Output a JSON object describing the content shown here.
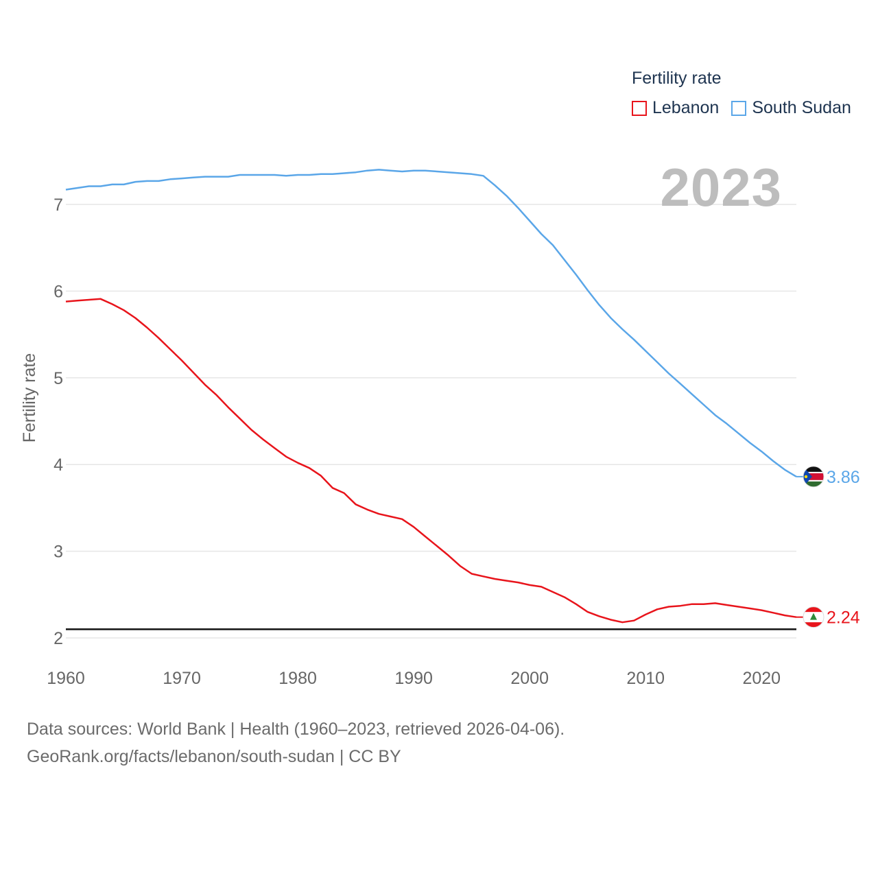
{
  "chart_data": {
    "type": "line",
    "ylabel": "Fertility rate",
    "xlabel": "",
    "xlim": [
      1960,
      2023
    ],
    "ylim": [
      1.9,
      7.55
    ],
    "yticks": [
      2,
      3,
      4,
      5,
      6,
      7
    ],
    "xticks": [
      1960,
      1970,
      1980,
      1990,
      2000,
      2010,
      2020
    ],
    "reference_line": 2.1,
    "current_year": "2023",
    "legend_title": "Fertility rate",
    "series": [
      {
        "name": "Lebanon",
        "color": "#e8141b",
        "end_label": "2.24",
        "flag": "lebanon-flag",
        "x": [
          1960,
          1961,
          1962,
          1963,
          1964,
          1965,
          1966,
          1967,
          1968,
          1969,
          1970,
          1971,
          1972,
          1973,
          1974,
          1975,
          1976,
          1977,
          1978,
          1979,
          1980,
          1981,
          1982,
          1983,
          1984,
          1985,
          1986,
          1987,
          1988,
          1989,
          1990,
          1991,
          1992,
          1993,
          1994,
          1995,
          1996,
          1997,
          1998,
          1999,
          2000,
          2001,
          2002,
          2003,
          2004,
          2005,
          2006,
          2007,
          2008,
          2009,
          2010,
          2011,
          2012,
          2013,
          2014,
          2015,
          2016,
          2017,
          2018,
          2019,
          2020,
          2021,
          2022,
          2023
        ],
        "values": [
          5.88,
          5.89,
          5.9,
          5.91,
          5.85,
          5.78,
          5.69,
          5.58,
          5.46,
          5.33,
          5.2,
          5.06,
          4.92,
          4.8,
          4.66,
          4.53,
          4.4,
          4.29,
          4.19,
          4.09,
          4.02,
          3.96,
          3.87,
          3.73,
          3.67,
          3.54,
          3.48,
          3.43,
          3.4,
          3.37,
          3.28,
          3.17,
          3.06,
          2.95,
          2.83,
          2.74,
          2.71,
          2.68,
          2.66,
          2.64,
          2.61,
          2.59,
          2.53,
          2.47,
          2.39,
          2.3,
          2.25,
          2.21,
          2.18,
          2.2,
          2.27,
          2.33,
          2.36,
          2.37,
          2.39,
          2.39,
          2.4,
          2.38,
          2.36,
          2.34,
          2.32,
          2.29,
          2.26,
          2.24
        ]
      },
      {
        "name": "South Sudan",
        "color": "#5aa6e8",
        "end_label": "3.86",
        "flag": "south-sudan-flag",
        "x": [
          1960,
          1961,
          1962,
          1963,
          1964,
          1965,
          1966,
          1967,
          1968,
          1969,
          1970,
          1971,
          1972,
          1973,
          1974,
          1975,
          1976,
          1977,
          1978,
          1979,
          1980,
          1981,
          1982,
          1983,
          1984,
          1985,
          1986,
          1987,
          1988,
          1989,
          1990,
          1991,
          1992,
          1993,
          1994,
          1995,
          1996,
          1997,
          1998,
          1999,
          2000,
          2001,
          2002,
          2003,
          2004,
          2005,
          2006,
          2007,
          2008,
          2009,
          2010,
          2011,
          2012,
          2013,
          2014,
          2015,
          2016,
          2017,
          2018,
          2019,
          2020,
          2021,
          2022,
          2023
        ],
        "values": [
          7.17,
          7.19,
          7.21,
          7.21,
          7.23,
          7.23,
          7.26,
          7.27,
          7.27,
          7.29,
          7.3,
          7.31,
          7.32,
          7.32,
          7.32,
          7.34,
          7.34,
          7.34,
          7.34,
          7.33,
          7.34,
          7.34,
          7.35,
          7.35,
          7.36,
          7.37,
          7.39,
          7.4,
          7.39,
          7.38,
          7.39,
          7.39,
          7.38,
          7.37,
          7.36,
          7.35,
          7.33,
          7.22,
          7.1,
          6.96,
          6.81,
          6.66,
          6.53,
          6.36,
          6.19,
          6.01,
          5.84,
          5.69,
          5.56,
          5.44,
          5.31,
          5.18,
          5.05,
          4.93,
          4.81,
          4.69,
          4.57,
          4.47,
          4.36,
          4.25,
          4.15,
          4.04,
          3.94,
          3.86
        ]
      }
    ]
  },
  "legend": {
    "title": "Fertility rate",
    "items": [
      {
        "label": "Lebanon",
        "color": "#e8141b"
      },
      {
        "label": "South Sudan",
        "color": "#5aa6e8"
      }
    ]
  },
  "year_label": "2023",
  "source": {
    "line1": "Data sources: World Bank | Health (1960–2023, retrieved 2026-04-06).",
    "line2": "GeoRank.org/facts/lebanon/south-sudan | CC BY"
  }
}
